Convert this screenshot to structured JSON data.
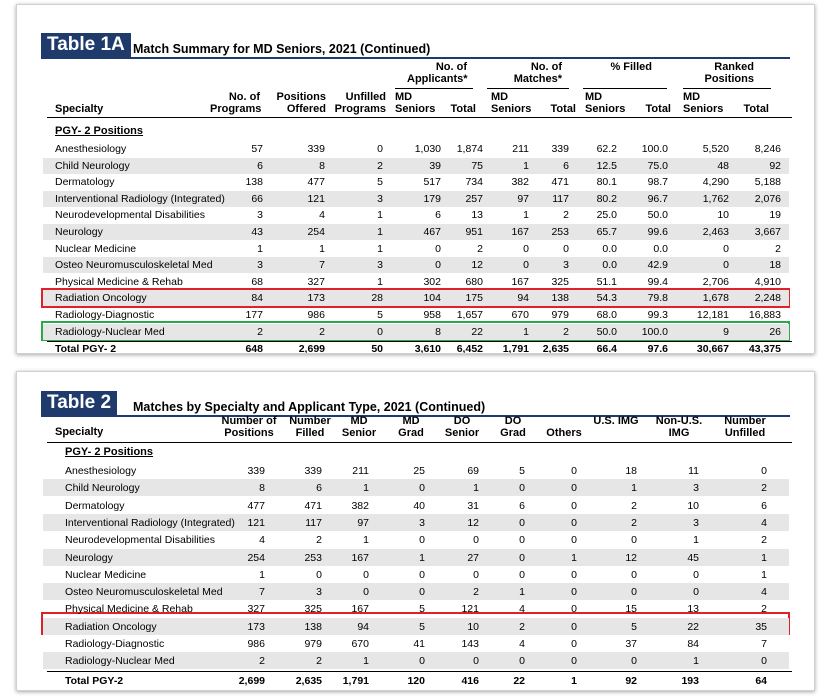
{
  "table1": {
    "tag": "Table 1A",
    "title": "Match Summary for MD Seniors, 2021 (Continued)",
    "headers": {
      "specialty": "Specialty",
      "num_programs": "No. of Programs",
      "positions_offered": "Positions Offered",
      "unfilled_programs": "Unfilled Programs",
      "applicants_group": "No. of Applicants*",
      "matches_group": "No. of Matches*",
      "filled_group": "% Filled",
      "ranked_group": "Ranked Positions",
      "md_seniors": "MD Seniors",
      "total": "Total"
    },
    "section": "PGY- 2 Positions",
    "rows": [
      [
        "Anesthesiology",
        "57",
        "339",
        "0",
        "1,030",
        "1,874",
        "211",
        "339",
        "62.2",
        "100.0",
        "5,520",
        "8,246"
      ],
      [
        "Child Neurology",
        "6",
        "8",
        "2",
        "39",
        "75",
        "1",
        "6",
        "12.5",
        "75.0",
        "48",
        "92"
      ],
      [
        "Dermatology",
        "138",
        "477",
        "5",
        "517",
        "734",
        "382",
        "471",
        "80.1",
        "98.7",
        "4,290",
        "5,188"
      ],
      [
        "Interventional Radiology (Integrated)",
        "66",
        "121",
        "3",
        "179",
        "257",
        "97",
        "117",
        "80.2",
        "96.7",
        "1,762",
        "2,076"
      ],
      [
        "Neurodevelopmental Disabilities",
        "3",
        "4",
        "1",
        "6",
        "13",
        "1",
        "2",
        "25.0",
        "50.0",
        "10",
        "19"
      ],
      [
        "Neurology",
        "43",
        "254",
        "1",
        "467",
        "951",
        "167",
        "253",
        "65.7",
        "99.6",
        "2,463",
        "3,667"
      ],
      [
        "Nuclear Medicine",
        "1",
        "1",
        "1",
        "0",
        "2",
        "0",
        "0",
        "0.0",
        "0.0",
        "0",
        "2"
      ],
      [
        "Osteo Neuromusculoskeletal Med",
        "3",
        "7",
        "3",
        "0",
        "12",
        "0",
        "3",
        "0.0",
        "42.9",
        "0",
        "18"
      ],
      [
        "Physical Medicine & Rehab",
        "68",
        "327",
        "1",
        "302",
        "680",
        "167",
        "325",
        "51.1",
        "99.4",
        "2,706",
        "4,910"
      ],
      [
        "Radiation Oncology",
        "84",
        "173",
        "28",
        "104",
        "175",
        "94",
        "138",
        "54.3",
        "79.8",
        "1,678",
        "2,248"
      ],
      [
        "Radiology-Diagnostic",
        "177",
        "986",
        "5",
        "958",
        "1,657",
        "670",
        "979",
        "68.0",
        "99.3",
        "12,181",
        "16,883"
      ],
      [
        "Radiology-Nuclear Med",
        "2",
        "2",
        "0",
        "8",
        "22",
        "1",
        "2",
        "50.0",
        "100.0",
        "9",
        "26"
      ]
    ],
    "total": [
      "Total PGY- 2",
      "648",
      "2,699",
      "50",
      "3,610",
      "6,452",
      "1,791",
      "2,635",
      "66.4",
      "97.6",
      "30,667",
      "43,375"
    ]
  },
  "table2": {
    "tag": "Table 2",
    "title": "Matches by Specialty and Applicant Type, 2021 (Continued)",
    "headers": [
      "Specialty",
      "Number of Positions",
      "Number Filled",
      "MD Senior",
      "MD Grad",
      "DO Senior",
      "DO Grad",
      "Others",
      "U.S. IMG",
      "Non-U.S. IMG",
      "Number Unfilled"
    ],
    "section": "PGY- 2 Positions",
    "rows": [
      [
        "Anesthesiology",
        "339",
        "339",
        "211",
        "25",
        "69",
        "5",
        "0",
        "18",
        "11",
        "0"
      ],
      [
        "Child Neurology",
        "8",
        "6",
        "1",
        "0",
        "1",
        "0",
        "0",
        "1",
        "3",
        "2"
      ],
      [
        "Dermatology",
        "477",
        "471",
        "382",
        "40",
        "31",
        "6",
        "0",
        "2",
        "10",
        "6"
      ],
      [
        "Interventional Radiology (Integrated)",
        "121",
        "117",
        "97",
        "3",
        "12",
        "0",
        "0",
        "2",
        "3",
        "4"
      ],
      [
        "Neurodevelopmental Disabilities",
        "4",
        "2",
        "1",
        "0",
        "0",
        "0",
        "0",
        "0",
        "1",
        "2"
      ],
      [
        "Neurology",
        "254",
        "253",
        "167",
        "1",
        "27",
        "0",
        "1",
        "12",
        "45",
        "1"
      ],
      [
        "Nuclear Medicine",
        "1",
        "0",
        "0",
        "0",
        "0",
        "0",
        "0",
        "0",
        "0",
        "1"
      ],
      [
        "Osteo Neuromusculoskeletal Med",
        "7",
        "3",
        "0",
        "0",
        "2",
        "1",
        "0",
        "0",
        "0",
        "4"
      ],
      [
        "Physical Medicine & Rehab",
        "327",
        "325",
        "167",
        "5",
        "121",
        "4",
        "0",
        "15",
        "13",
        "2"
      ],
      [
        "Radiation Oncology",
        "173",
        "138",
        "94",
        "5",
        "10",
        "2",
        "0",
        "5",
        "22",
        "35"
      ],
      [
        "Radiology-Diagnostic",
        "986",
        "979",
        "670",
        "41",
        "143",
        "4",
        "0",
        "37",
        "84",
        "7"
      ],
      [
        "Radiology-Nuclear Med",
        "2",
        "2",
        "1",
        "0",
        "0",
        "0",
        "0",
        "0",
        "1",
        "0"
      ]
    ],
    "total": [
      "Total PGY-2",
      "2,699",
      "2,635",
      "1,791",
      "120",
      "416",
      "22",
      "1",
      "92",
      "193",
      "64"
    ]
  },
  "colors": {
    "tag_bg": "#1f3b6b",
    "highlight_red": "#e0202a",
    "highlight_green": "#2aa84a",
    "row_shade": "#e6e6e6"
  }
}
